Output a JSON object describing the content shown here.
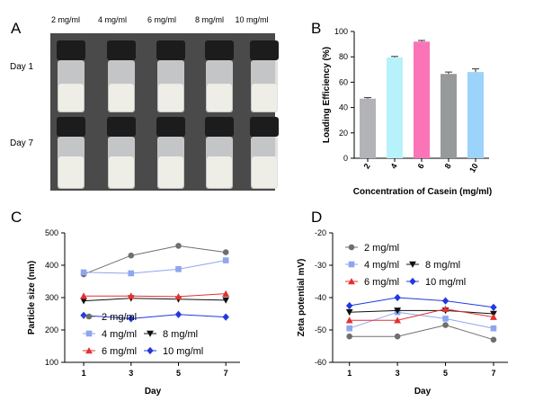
{
  "panel_letters": [
    "A",
    "B",
    "C",
    "D"
  ],
  "photo_panel": {
    "concentration_labels": [
      "2 mg/ml",
      "4 mg/ml",
      "6 mg/ml",
      "8 mg/ml",
      "10 mg/ml"
    ],
    "row_labels": [
      "Day 1",
      "Day 7"
    ],
    "colors": {
      "background": "#4a4a4a",
      "cap": "#1c1c1c",
      "glass": "#d9dadc",
      "liquid": "#efeee6"
    }
  },
  "chart_data": [
    {
      "panel": "B",
      "type": "bar",
      "categories": [
        "2",
        "4",
        "6",
        "8",
        "10"
      ],
      "values": [
        47,
        79.5,
        92,
        66.5,
        68
      ],
      "errors": [
        0.8,
        0.8,
        0.9,
        1.5,
        2.5
      ],
      "colors": [
        "#b1b3b6",
        "#b7f2fb",
        "#fb74b8",
        "#979a9b",
        "#9bd3fb"
      ],
      "xlabel": "Concentration of Casein (mg/ml)",
      "ylabel": "Loading Efficiency (%)",
      "ylim": [
        0,
        100
      ],
      "yticks": [
        "0",
        "20",
        "40",
        "60",
        "80",
        "100"
      ]
    },
    {
      "panel": "C",
      "type": "line",
      "x": [
        1,
        3,
        5,
        7
      ],
      "xticks": [
        "1",
        "3",
        "5",
        "7"
      ],
      "xlabel": "Day",
      "ylabel": "Particle size (nm)",
      "ylim": [
        100,
        500
      ],
      "yticks": [
        "100",
        "200",
        "300",
        "400",
        "500"
      ],
      "legend_placement": "lower-left",
      "series": [
        {
          "name": "2 mg/ml",
          "color": "#6f6f6f",
          "marker": "circle",
          "values": [
            372,
            430,
            460,
            440
          ]
        },
        {
          "name": "4 mg/ml",
          "color": "#8ea6ee",
          "marker": "square",
          "values": [
            378,
            375,
            388,
            415
          ]
        },
        {
          "name": "8 mg/ml",
          "color": "#111111",
          "marker": "triangle-down",
          "values": [
            290,
            298,
            295,
            292
          ]
        },
        {
          "name": "6 mg/ml",
          "color": "#e53030",
          "marker": "triangle-up",
          "values": [
            305,
            305,
            303,
            312
          ]
        },
        {
          "name": "10 mg/ml",
          "color": "#2238e0",
          "marker": "diamond",
          "values": [
            245,
            235,
            248,
            240
          ]
        }
      ]
    },
    {
      "panel": "D",
      "type": "line",
      "x": [
        1,
        3,
        5,
        7
      ],
      "xticks": [
        "1",
        "3",
        "5",
        "7"
      ],
      "xlabel": "Day",
      "ylabel": "Zeta potential    mV)",
      "ylim": [
        -60,
        -20
      ],
      "yticks": [
        "-20",
        "-30",
        "-40",
        "-50",
        "-60"
      ],
      "legend_placement": "upper-left",
      "series": [
        {
          "name": "2 mg/ml",
          "color": "#6f6f6f",
          "marker": "circle",
          "values": [
            -52,
            -52,
            -48.5,
            -53
          ]
        },
        {
          "name": "4 mg/ml",
          "color": "#8ea6ee",
          "marker": "square",
          "values": [
            -49.5,
            -44.5,
            -46.5,
            -49.5
          ]
        },
        {
          "name": "8 mg/ml",
          "color": "#111111",
          "marker": "triangle-down",
          "values": [
            -44.5,
            -44,
            -44,
            -45
          ]
        },
        {
          "name": "6 mg/ml",
          "color": "#e53030",
          "marker": "triangle-up",
          "values": [
            -47,
            -47,
            -43.5,
            -46
          ]
        },
        {
          "name": "10 mg/ml",
          "color": "#2238e0",
          "marker": "diamond",
          "values": [
            -42.5,
            -40,
            -41,
            -43
          ]
        }
      ]
    }
  ]
}
